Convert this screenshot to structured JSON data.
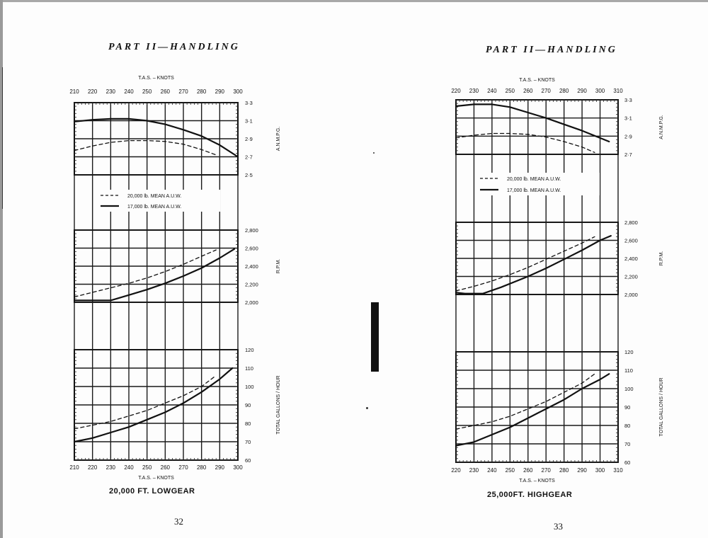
{
  "pages": [
    {
      "header": "PART II—HANDLING",
      "caption": "20,000 FT.  LOWGEAR",
      "page_number": "32"
    },
    {
      "header": "PART II—HANDLING",
      "caption": "25,000FT.  HIGHGEAR",
      "page_number": "33"
    }
  ],
  "legend": {
    "dashed": "20,000 lb.  MEAN  A.U.W.",
    "solid": "17,000 lb.  MEAN  A.U.W."
  },
  "axis_labels": {
    "x": "T.A.S. – KNOTS",
    "mpg": "A.N.M.P.G.",
    "rpm": "R.P.M.",
    "gph": "TOTAL GALLONS / HOUR"
  },
  "chart_data": [
    {
      "type": "line",
      "title": "20,000 FT. LOWGEAR",
      "xlabel": "T.A.S. – KNOTS",
      "x_ticks": [
        210,
        220,
        230,
        240,
        250,
        260,
        270,
        280,
        290,
        300
      ],
      "xlim": [
        210,
        300
      ],
      "legend": [
        "20,000 lb. MEAN A.U.W. (dashed)",
        "17,000 lb. MEAN A.U.W. (solid)"
      ],
      "panels": [
        {
          "ylabel": "A.N.M.P.G.",
          "ylim": [
            2.5,
            3.3
          ],
          "y_ticks": [
            "2·5",
            "2·7",
            "2·9",
            "3·1",
            "3·3"
          ],
          "series": [
            {
              "name": "20,000 lb. MEAN A.U.W.",
              "style": "dashed",
              "x": [
                210,
                220,
                230,
                240,
                250,
                260,
                270,
                280,
                288
              ],
              "y": [
                2.77,
                2.82,
                2.86,
                2.88,
                2.88,
                2.87,
                2.84,
                2.78,
                2.72
              ]
            },
            {
              "name": "17,000 lb. MEAN A.U.W.",
              "style": "solid",
              "x": [
                210,
                220,
                230,
                240,
                250,
                260,
                270,
                280,
                290,
                300
              ],
              "y": [
                3.09,
                3.11,
                3.12,
                3.12,
                3.1,
                3.06,
                3.0,
                2.93,
                2.83,
                2.7
              ]
            }
          ]
        },
        {
          "ylabel": "R.P.M.",
          "ylim": [
            2000,
            2800
          ],
          "y_ticks": [
            "2,000",
            "2,200",
            "2,400",
            "2,600",
            "2,800"
          ],
          "series": [
            {
              "name": "20,000 lb. MEAN A.U.W.",
              "style": "dashed",
              "x": [
                210,
                220,
                230,
                240,
                250,
                260,
                270,
                280,
                288
              ],
              "y": [
                2060,
                2110,
                2160,
                2210,
                2270,
                2340,
                2420,
                2510,
                2580
              ]
            },
            {
              "name": "17,000 lb. MEAN A.U.W.",
              "style": "solid",
              "x": [
                210,
                220,
                230,
                240,
                250,
                260,
                270,
                280,
                290,
                298
              ],
              "y": [
                2020,
                2020,
                2020,
                2080,
                2140,
                2210,
                2290,
                2380,
                2490,
                2590
              ]
            }
          ]
        },
        {
          "ylabel": "TOTAL GALLONS / HOUR",
          "ylim": [
            60,
            120
          ],
          "y_ticks": [
            "60",
            "70",
            "80",
            "90",
            "100",
            "110",
            "120"
          ],
          "series": [
            {
              "name": "20,000 lb. MEAN A.U.W.",
              "style": "dashed",
              "x": [
                210,
                220,
                230,
                240,
                250,
                260,
                270,
                280,
                288
              ],
              "y": [
                77,
                79,
                81,
                84,
                87,
                91,
                95,
                100,
                106
              ]
            },
            {
              "name": "17,000 lb. MEAN A.U.W.",
              "style": "solid",
              "x": [
                210,
                220,
                230,
                240,
                250,
                260,
                270,
                280,
                290,
                297
              ],
              "y": [
                70,
                72,
                75,
                78,
                82,
                86,
                91,
                97,
                104,
                110
              ]
            }
          ]
        }
      ]
    },
    {
      "type": "line",
      "title": "25,000FT. HIGHGEAR",
      "xlabel": "T.A.S. – KNOTS",
      "x_ticks": [
        220,
        230,
        240,
        250,
        260,
        270,
        280,
        290,
        300,
        310
      ],
      "xlim": [
        220,
        310
      ],
      "legend": [
        "20,000 lb. MEAN A.U.W. (dashed)",
        "17,000 lb. MEAN A.U.W. (solid)"
      ],
      "panels": [
        {
          "ylabel": "A.N.M.P.G.",
          "ylim": [
            2.7,
            3.3
          ],
          "y_ticks": [
            "2·7",
            "2·9",
            "3·1",
            "3·3"
          ],
          "series": [
            {
              "name": "20,000 lb. MEAN A.U.W.",
              "style": "dashed",
              "x": [
                220,
                230,
                240,
                250,
                260,
                270,
                280,
                290,
                297
              ],
              "y": [
                2.88,
                2.91,
                2.93,
                2.93,
                2.92,
                2.89,
                2.84,
                2.78,
                2.72
              ]
            },
            {
              "name": "17,000 lb. MEAN A.U.W.",
              "style": "solid",
              "x": [
                220,
                230,
                240,
                250,
                260,
                270,
                280,
                290,
                300,
                305
              ],
              "y": [
                3.23,
                3.25,
                3.25,
                3.22,
                3.16,
                3.1,
                3.03,
                2.96,
                2.88,
                2.84
              ]
            }
          ]
        },
        {
          "ylabel": "R.P.M.",
          "ylim": [
            2000,
            2800
          ],
          "y_ticks": [
            "2,000",
            "2,200",
            "2,400",
            "2,600",
            "2,800"
          ],
          "series": [
            {
              "name": "20,000 lb. MEAN A.U.W.",
              "style": "dashed",
              "x": [
                220,
                230,
                240,
                250,
                260,
                270,
                280,
                290,
                297
              ],
              "y": [
                2040,
                2090,
                2150,
                2220,
                2300,
                2390,
                2480,
                2570,
                2640
              ]
            },
            {
              "name": "17,000 lb. MEAN A.U.W.",
              "style": "solid",
              "x": [
                220,
                225,
                235,
                245,
                260,
                270,
                280,
                290,
                300,
                306
              ],
              "y": [
                2020,
                2010,
                2010,
                2080,
                2200,
                2290,
                2390,
                2490,
                2600,
                2650
              ]
            }
          ]
        },
        {
          "ylabel": "TOTAL GALLONS / HOUR",
          "ylim": [
            60,
            120
          ],
          "y_ticks": [
            "60",
            "70",
            "80",
            "90",
            "100",
            "110",
            "120"
          ],
          "series": [
            {
              "name": "20,000 lb. MEAN A.U.W.",
              "style": "dashed",
              "x": [
                220,
                230,
                240,
                250,
                260,
                270,
                280,
                290,
                297
              ],
              "y": [
                78,
                80,
                82,
                85,
                89,
                93,
                98,
                103,
                108
              ]
            },
            {
              "name": "17,000 lb. MEAN A.U.W.",
              "style": "solid",
              "x": [
                220,
                230,
                240,
                250,
                260,
                270,
                280,
                290,
                300,
                305
              ],
              "y": [
                69,
                71,
                75,
                79,
                84,
                89,
                94,
                100,
                105,
                108
              ]
            }
          ]
        }
      ]
    }
  ]
}
